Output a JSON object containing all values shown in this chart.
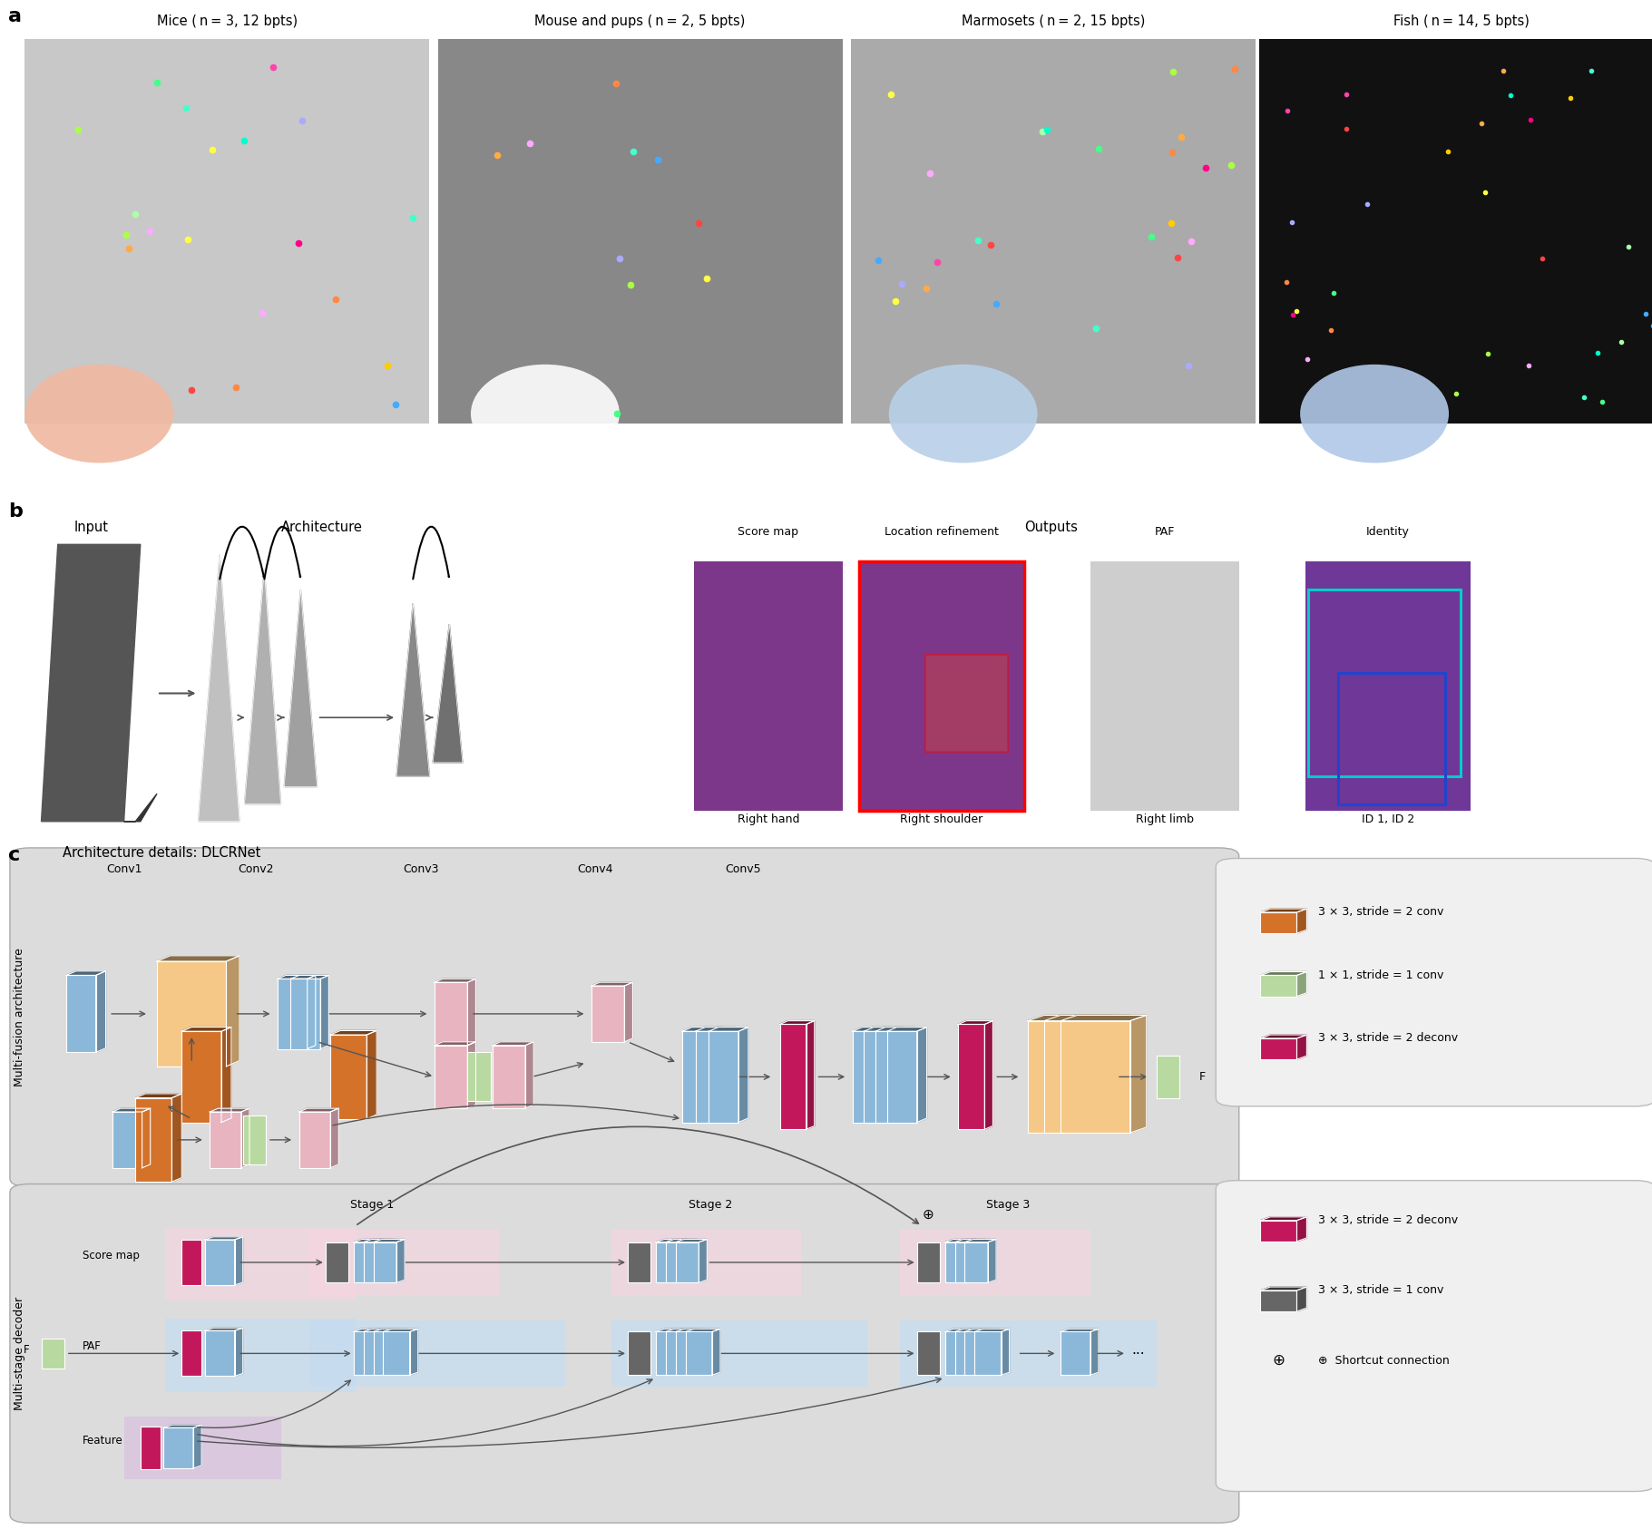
{
  "panel_a_labels": [
    "Mice ( n = 3, 12 bpts)",
    "Mouse and pups ( n = 2, 5 bpts)",
    "Marmosets ( n = 2, 15 bpts)",
    "Fish ( n = 14, 5 bpts)"
  ],
  "panel_b_input_label": "Input",
  "panel_b_arch_label": "Architecture",
  "panel_b_outputs_label": "Outputs",
  "panel_b_top_labels": [
    "Score map",
    "Location refinement",
    "PAF",
    "Identity"
  ],
  "panel_b_bot_labels": [
    "Right hand",
    "Right shoulder",
    "Right limb",
    "ID 1, ID 2"
  ],
  "panel_c_title": "Architecture details: DLCRNet",
  "arch_label": "Multi-fusion architecture",
  "decoder_label": "Multi-stage decoder",
  "conv_labels": [
    "Conv1",
    "Conv2",
    "Conv3",
    "Conv4",
    "Conv5"
  ],
  "stage_labels": [
    "Stage 1",
    "Stage 2",
    "Stage 3"
  ],
  "legend_top": [
    "3 × 3, stride = 2 conv",
    "1 × 1, stride = 1 conv",
    "3 × 3, stride = 2 deconv"
  ],
  "legend_bottom": [
    "3 × 3, stride = 2 deconv",
    "3 × 3, stride = 1 conv",
    "⊕  Shortcut connection"
  ],
  "col_orange": "#D4722A",
  "col_peach": "#F5C887",
  "col_green": "#B8D9A0",
  "col_magenta": "#C2185B",
  "col_blue": "#8BB8D9",
  "col_pink": "#E8B4C0",
  "col_mauve": "#C9A8C8",
  "col_gray_dark": "#666666",
  "col_blue_bg": "#C5DCF0",
  "col_pink_bg": "#F5D5E0",
  "col_purple_bg": "#D8C0E0",
  "col_bg_arch": "#DCDCDC",
  "col_bg_dec": "#DCDCDC",
  "photo_colors": [
    "#C8C8C8",
    "#888888",
    "#AAAAAA",
    "#111111"
  ],
  "circle_colors": [
    "#F0B8A0",
    "#FFFFFF",
    "#B8D0E8",
    "#B0C8E8"
  ]
}
